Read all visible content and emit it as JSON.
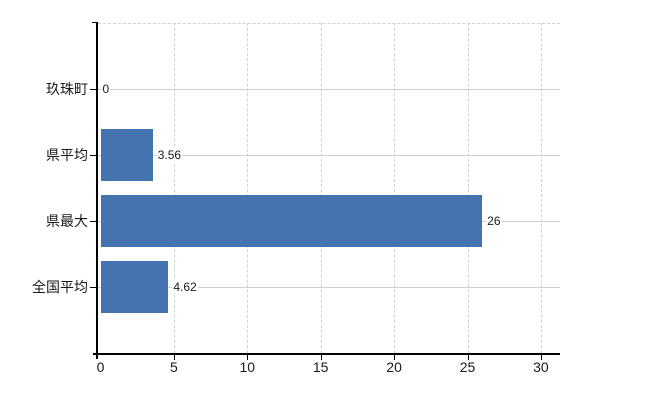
{
  "chart_data": {
    "type": "bar",
    "orientation": "horizontal",
    "title": "",
    "categories": [
      "玖珠町",
      "県平均",
      "県最大",
      "全国平均"
    ],
    "values": [
      0,
      3.56,
      26,
      4.62
    ],
    "value_labels": [
      "0",
      "3.56",
      "26",
      "4.62"
    ],
    "x_ticks": [
      0,
      5,
      10,
      15,
      20,
      25,
      30
    ],
    "x_tick_labels": [
      "0",
      "5",
      "10",
      "15",
      "20",
      "25",
      "30"
    ],
    "xlim": [
      0,
      31.3
    ],
    "grid": true,
    "legend": "none",
    "bar_color": "#4473b0",
    "gridline_color": "#cdd3cd",
    "axis_color": "#000000",
    "label_color": "#1a1a1a",
    "background_color": "#ffffff"
  }
}
